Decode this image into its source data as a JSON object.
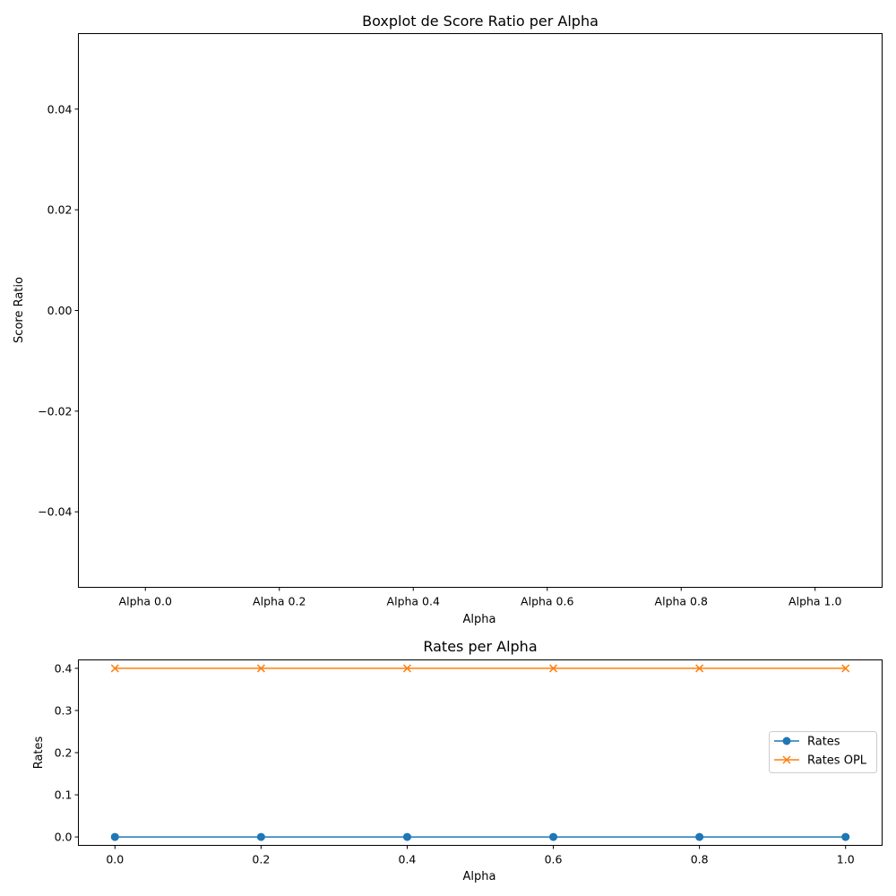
{
  "chart_data": [
    {
      "type": "box",
      "title": "Boxplot de Score Ratio per Alpha",
      "xlabel": "Alpha",
      "ylabel": "Score Ratio",
      "categories": [
        "Alpha 0.0",
        "Alpha 0.2",
        "Alpha 0.4",
        "Alpha 0.6",
        "Alpha 0.8",
        "Alpha 1.0"
      ],
      "ylim": [
        -0.055,
        0.055
      ],
      "yticks": [
        -0.04,
        -0.02,
        0.0,
        0.02,
        0.04
      ],
      "ytick_labels": [
        "−0.04",
        "−0.02",
        "0.00",
        "0.02",
        "0.04"
      ],
      "grid": false
    },
    {
      "type": "line",
      "title": "Rates per Alpha",
      "xlabel": "Alpha",
      "ylabel": "Rates",
      "x": [
        0.0,
        0.2,
        0.4,
        0.6,
        0.8,
        1.0
      ],
      "xlim": [
        -0.05,
        1.05
      ],
      "ylim": [
        -0.02,
        0.42
      ],
      "xticks": [
        0.0,
        0.2,
        0.4,
        0.6,
        0.8,
        1.0
      ],
      "xtick_labels": [
        "0.0",
        "0.2",
        "0.4",
        "0.6",
        "0.8",
        "1.0"
      ],
      "yticks": [
        0.0,
        0.1,
        0.2,
        0.3,
        0.4
      ],
      "ytick_labels": [
        "0.0",
        "0.1",
        "0.2",
        "0.3",
        "0.4"
      ],
      "series": [
        {
          "name": "Rates",
          "values": [
            0.0,
            0.0,
            0.0,
            0.0,
            0.0,
            0.0
          ],
          "color": "#1f77b4",
          "marker": "circle"
        },
        {
          "name": "Rates OPL",
          "values": [
            0.4,
            0.4,
            0.4,
            0.4,
            0.4,
            0.4
          ],
          "color": "#ff7f0e",
          "marker": "x"
        }
      ],
      "legend": "center-right",
      "grid": false
    }
  ]
}
